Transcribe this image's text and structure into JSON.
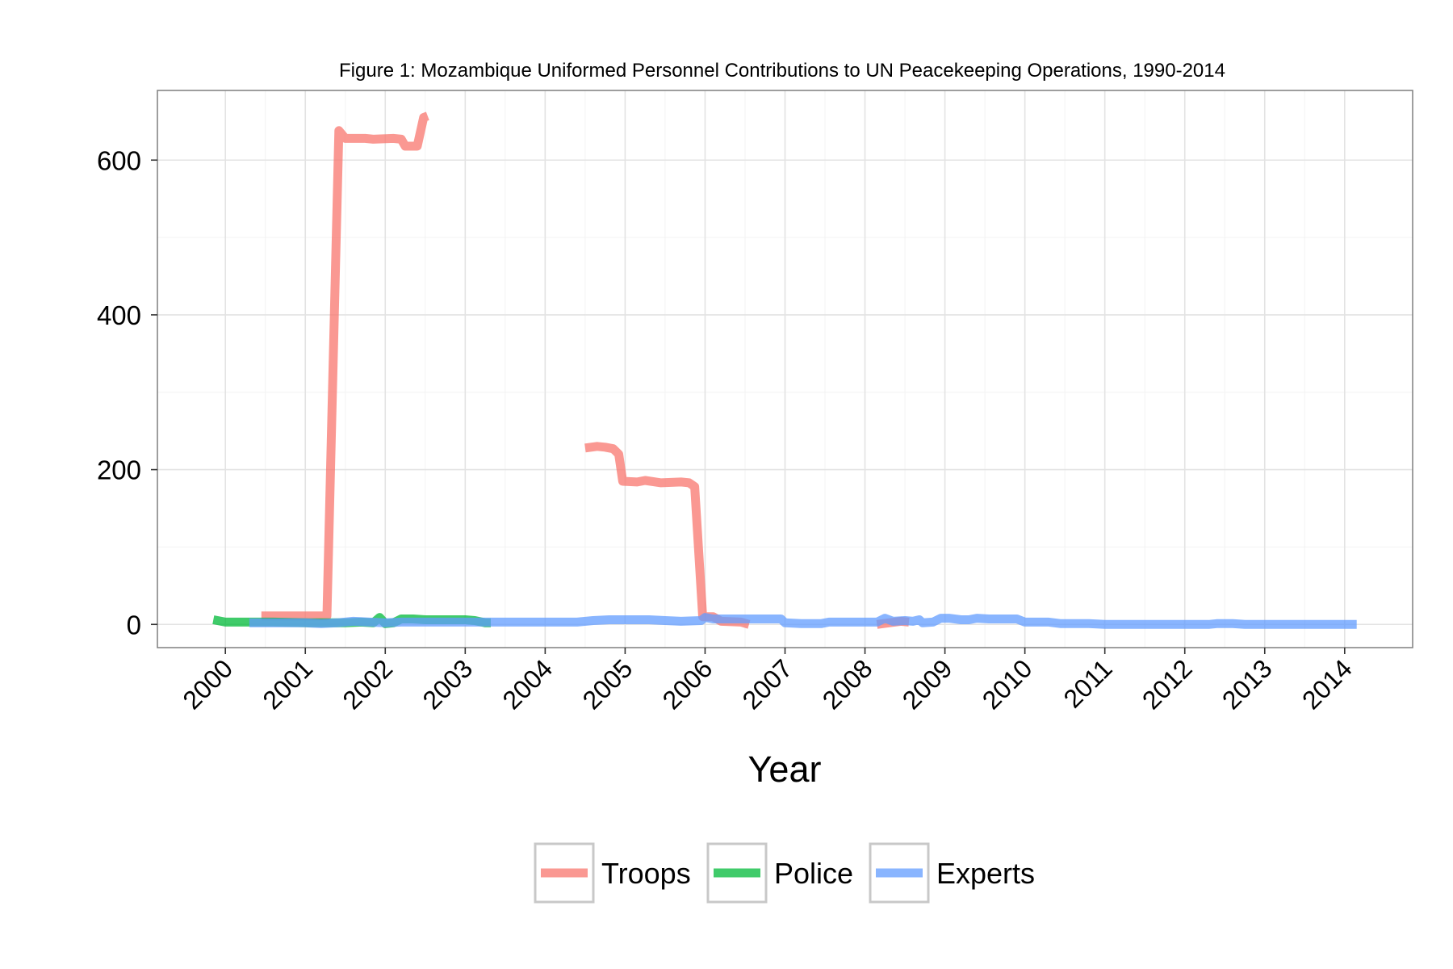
{
  "chart_data": {
    "type": "line",
    "title": "Figure 1: Mozambique Uniformed Personnel Contributions to UN Peacekeeping Operations, 1990-2014",
    "xlabel": "Year",
    "ylabel": "",
    "xlim": [
      1999.15,
      2014.85
    ],
    "ylim": [
      -30,
      690
    ],
    "x_ticks": [
      2000,
      2001,
      2002,
      2003,
      2004,
      2005,
      2006,
      2007,
      2008,
      2009,
      2010,
      2011,
      2012,
      2013,
      2014
    ],
    "x_tick_labels": [
      "2000",
      "2001",
      "2002",
      "2003",
      "2004",
      "2005",
      "2006",
      "2007",
      "2008",
      "2009",
      "2010",
      "2011",
      "2012",
      "2013",
      "2014"
    ],
    "y_ticks": [
      0,
      200,
      400,
      600
    ],
    "y_tick_labels": [
      "0",
      "200",
      "400",
      "600"
    ],
    "grid": true,
    "legend_position": "bottom",
    "series": [
      {
        "name": "Troops",
        "color": "#f8766d",
        "segments": [
          [
            [
              2000.45,
              11
            ],
            [
              2001.2,
              11
            ],
            [
              2001.27,
              11
            ],
            [
              2001.42,
              638
            ],
            [
              2001.5,
              628
            ],
            [
              2001.75,
              628
            ],
            [
              2001.85,
              627
            ],
            [
              2002.1,
              628
            ],
            [
              2002.2,
              627
            ],
            [
              2002.25,
              618
            ],
            [
              2002.4,
              618
            ],
            [
              2002.48,
              655
            ],
            [
              2002.53,
              657
            ]
          ],
          [
            [
              2004.5,
              228
            ],
            [
              2004.65,
              230
            ],
            [
              2004.75,
              229
            ],
            [
              2004.85,
              227
            ],
            [
              2004.92,
              220
            ],
            [
              2004.97,
              185
            ],
            [
              2005.15,
              184
            ],
            [
              2005.25,
              186
            ],
            [
              2005.45,
              183
            ],
            [
              2005.7,
              184
            ],
            [
              2005.8,
              183
            ],
            [
              2005.87,
              178
            ],
            [
              2005.97,
              10
            ],
            [
              2006.1,
              10
            ],
            [
              2006.2,
              4
            ],
            [
              2006.45,
              3
            ],
            [
              2006.55,
              0
            ]
          ],
          [
            [
              2008.15,
              0
            ],
            [
              2008.3,
              2
            ],
            [
              2008.45,
              4
            ],
            [
              2008.55,
              3
            ]
          ]
        ]
      },
      {
        "name": "Police",
        "color": "#00ba38",
        "segments": [
          [
            [
              1999.85,
              6
            ],
            [
              2000.0,
              3
            ],
            [
              2000.2,
              3
            ],
            [
              2000.6,
              3
            ],
            [
              2001.05,
              2
            ],
            [
              2001.3,
              2
            ],
            [
              2001.5,
              2
            ],
            [
              2001.7,
              3
            ],
            [
              2001.85,
              2
            ],
            [
              2001.93,
              9
            ],
            [
              2002.0,
              1
            ],
            [
              2002.1,
              2
            ],
            [
              2002.2,
              7
            ],
            [
              2002.35,
              7
            ],
            [
              2002.5,
              6
            ],
            [
              2002.7,
              6
            ],
            [
              2003.0,
              6
            ],
            [
              2003.12,
              5
            ],
            [
              2003.25,
              2
            ],
            [
              2003.32,
              2
            ]
          ]
        ]
      },
      {
        "name": "Experts",
        "color": "#619cff",
        "segments": [
          [
            [
              2000.3,
              2
            ],
            [
              2000.5,
              2
            ],
            [
              2000.8,
              2
            ],
            [
              2001.0,
              2
            ],
            [
              2001.2,
              1
            ],
            [
              2001.4,
              2
            ],
            [
              2001.6,
              4
            ],
            [
              2001.8,
              3
            ],
            [
              2002.0,
              2
            ],
            [
              2002.2,
              3
            ],
            [
              2002.4,
              3
            ],
            [
              2002.6,
              3
            ],
            [
              2002.8,
              3
            ],
            [
              2003.0,
              3
            ],
            [
              2003.3,
              3
            ],
            [
              2003.6,
              3
            ],
            [
              2004.0,
              3
            ],
            [
              2004.4,
              3
            ],
            [
              2004.6,
              5
            ],
            [
              2004.8,
              6
            ],
            [
              2005.0,
              6
            ],
            [
              2005.3,
              6
            ],
            [
              2005.5,
              5
            ],
            [
              2005.7,
              4
            ],
            [
              2005.95,
              5
            ],
            [
              2006.0,
              9
            ],
            [
              2006.1,
              7
            ],
            [
              2006.4,
              7
            ],
            [
              2006.6,
              7
            ],
            [
              2006.95,
              7
            ],
            [
              2007.0,
              2
            ],
            [
              2007.2,
              1
            ],
            [
              2007.45,
              1
            ],
            [
              2007.55,
              3
            ],
            [
              2007.8,
              3
            ],
            [
              2008.15,
              3
            ],
            [
              2008.25,
              8
            ],
            [
              2008.35,
              4
            ],
            [
              2008.5,
              5
            ],
            [
              2008.6,
              4
            ],
            [
              2008.68,
              6
            ],
            [
              2008.72,
              2
            ],
            [
              2008.85,
              3
            ],
            [
              2008.95,
              8
            ],
            [
              2009.05,
              8
            ],
            [
              2009.2,
              6
            ],
            [
              2009.3,
              6
            ],
            [
              2009.4,
              8
            ],
            [
              2009.55,
              7
            ],
            [
              2009.75,
              7
            ],
            [
              2009.9,
              7
            ],
            [
              2010.0,
              3
            ],
            [
              2010.3,
              3
            ],
            [
              2010.45,
              1
            ],
            [
              2010.6,
              1
            ],
            [
              2010.8,
              1
            ],
            [
              2011.0,
              0
            ],
            [
              2011.5,
              0
            ],
            [
              2012.0,
              0
            ],
            [
              2012.3,
              0
            ],
            [
              2012.4,
              1
            ],
            [
              2012.6,
              1
            ],
            [
              2012.75,
              0
            ],
            [
              2013.0,
              0
            ],
            [
              2013.5,
              0
            ],
            [
              2014.0,
              0
            ],
            [
              2014.15,
              0
            ]
          ]
        ]
      }
    ]
  }
}
